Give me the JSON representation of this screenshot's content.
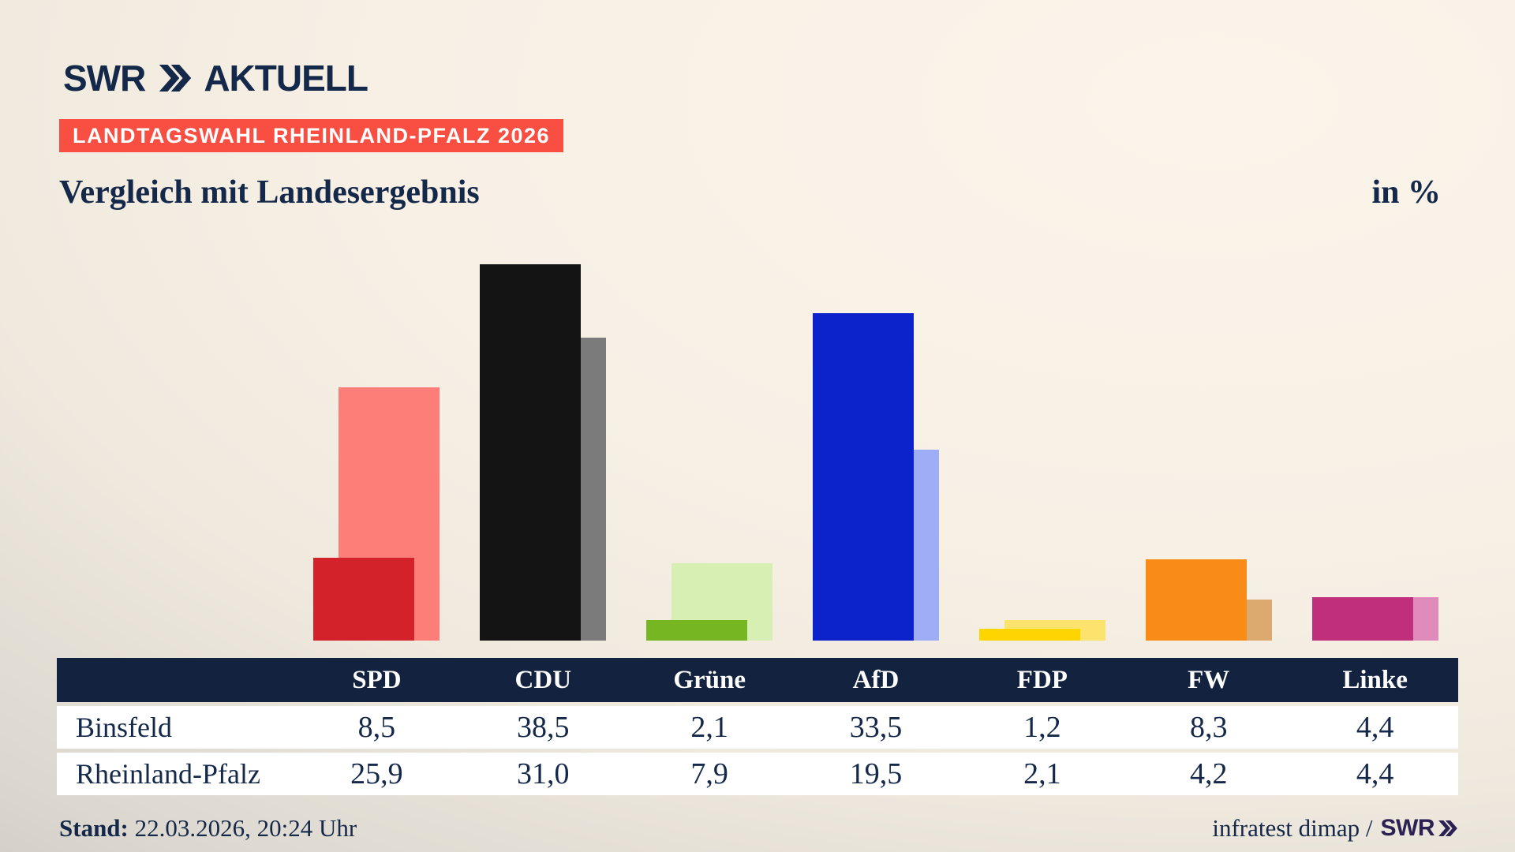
{
  "header": {
    "logo_brand": "SWR",
    "logo_suffix": "AKTUELL",
    "badge": "LANDTAGSWAHL RHEINLAND-PFALZ 2026",
    "title": "Vergleich mit Landesergebnis",
    "unit_label": "in %"
  },
  "chart_data": {
    "type": "bar",
    "title": "Vergleich mit Landesergebnis",
    "unit": "in %",
    "categories": [
      "SPD",
      "CDU",
      "Grüne",
      "AfD",
      "FDP",
      "FW",
      "Linke"
    ],
    "series": [
      {
        "name": "Binsfeld",
        "role": "municipality-front-bar",
        "values": [
          8.5,
          38.5,
          2.1,
          33.5,
          1.2,
          8.3,
          4.4
        ]
      },
      {
        "name": "Rheinland-Pfalz",
        "role": "state-back-bar",
        "values": [
          25.9,
          31.0,
          7.9,
          19.5,
          2.1,
          4.2,
          4.4
        ]
      }
    ],
    "colors": {
      "front": [
        "#d4222a",
        "#141414",
        "#76b622",
        "#0c22cb",
        "#ffd500",
        "#f98b17",
        "#bf2f7b"
      ],
      "back": [
        "#fd7d78",
        "#7b7b7b",
        "#d7efb3",
        "#9fadf6",
        "#fce36e",
        "#dca96f",
        "#e18bbd"
      ]
    },
    "ylim": [
      0,
      40
    ],
    "grid": false,
    "legend_position": "table-below"
  },
  "table": {
    "columns": [
      "SPD",
      "CDU",
      "Grüne",
      "AfD",
      "FDP",
      "FW",
      "Linke"
    ],
    "rows": [
      {
        "label": "Binsfeld",
        "values": [
          "8,5",
          "38,5",
          "2,1",
          "33,5",
          "1,2",
          "8,3",
          "4,4"
        ]
      },
      {
        "label": "Rheinland-Pfalz",
        "values": [
          "25,9",
          "31,0",
          "7,9",
          "19,5",
          "2,1",
          "4,2",
          "4,4"
        ]
      }
    ]
  },
  "footer": {
    "stand_label": "Stand:",
    "stand_value": "22.03.2026, 20:24 Uhr",
    "source_text": "infratest dimap /",
    "source_brand": "SWR"
  },
  "brand_colors": {
    "navy": "#14284a",
    "badge_red": "#f94f42",
    "footer_brand_purple": "#2b2153",
    "table_header_navy": "#13233f"
  }
}
